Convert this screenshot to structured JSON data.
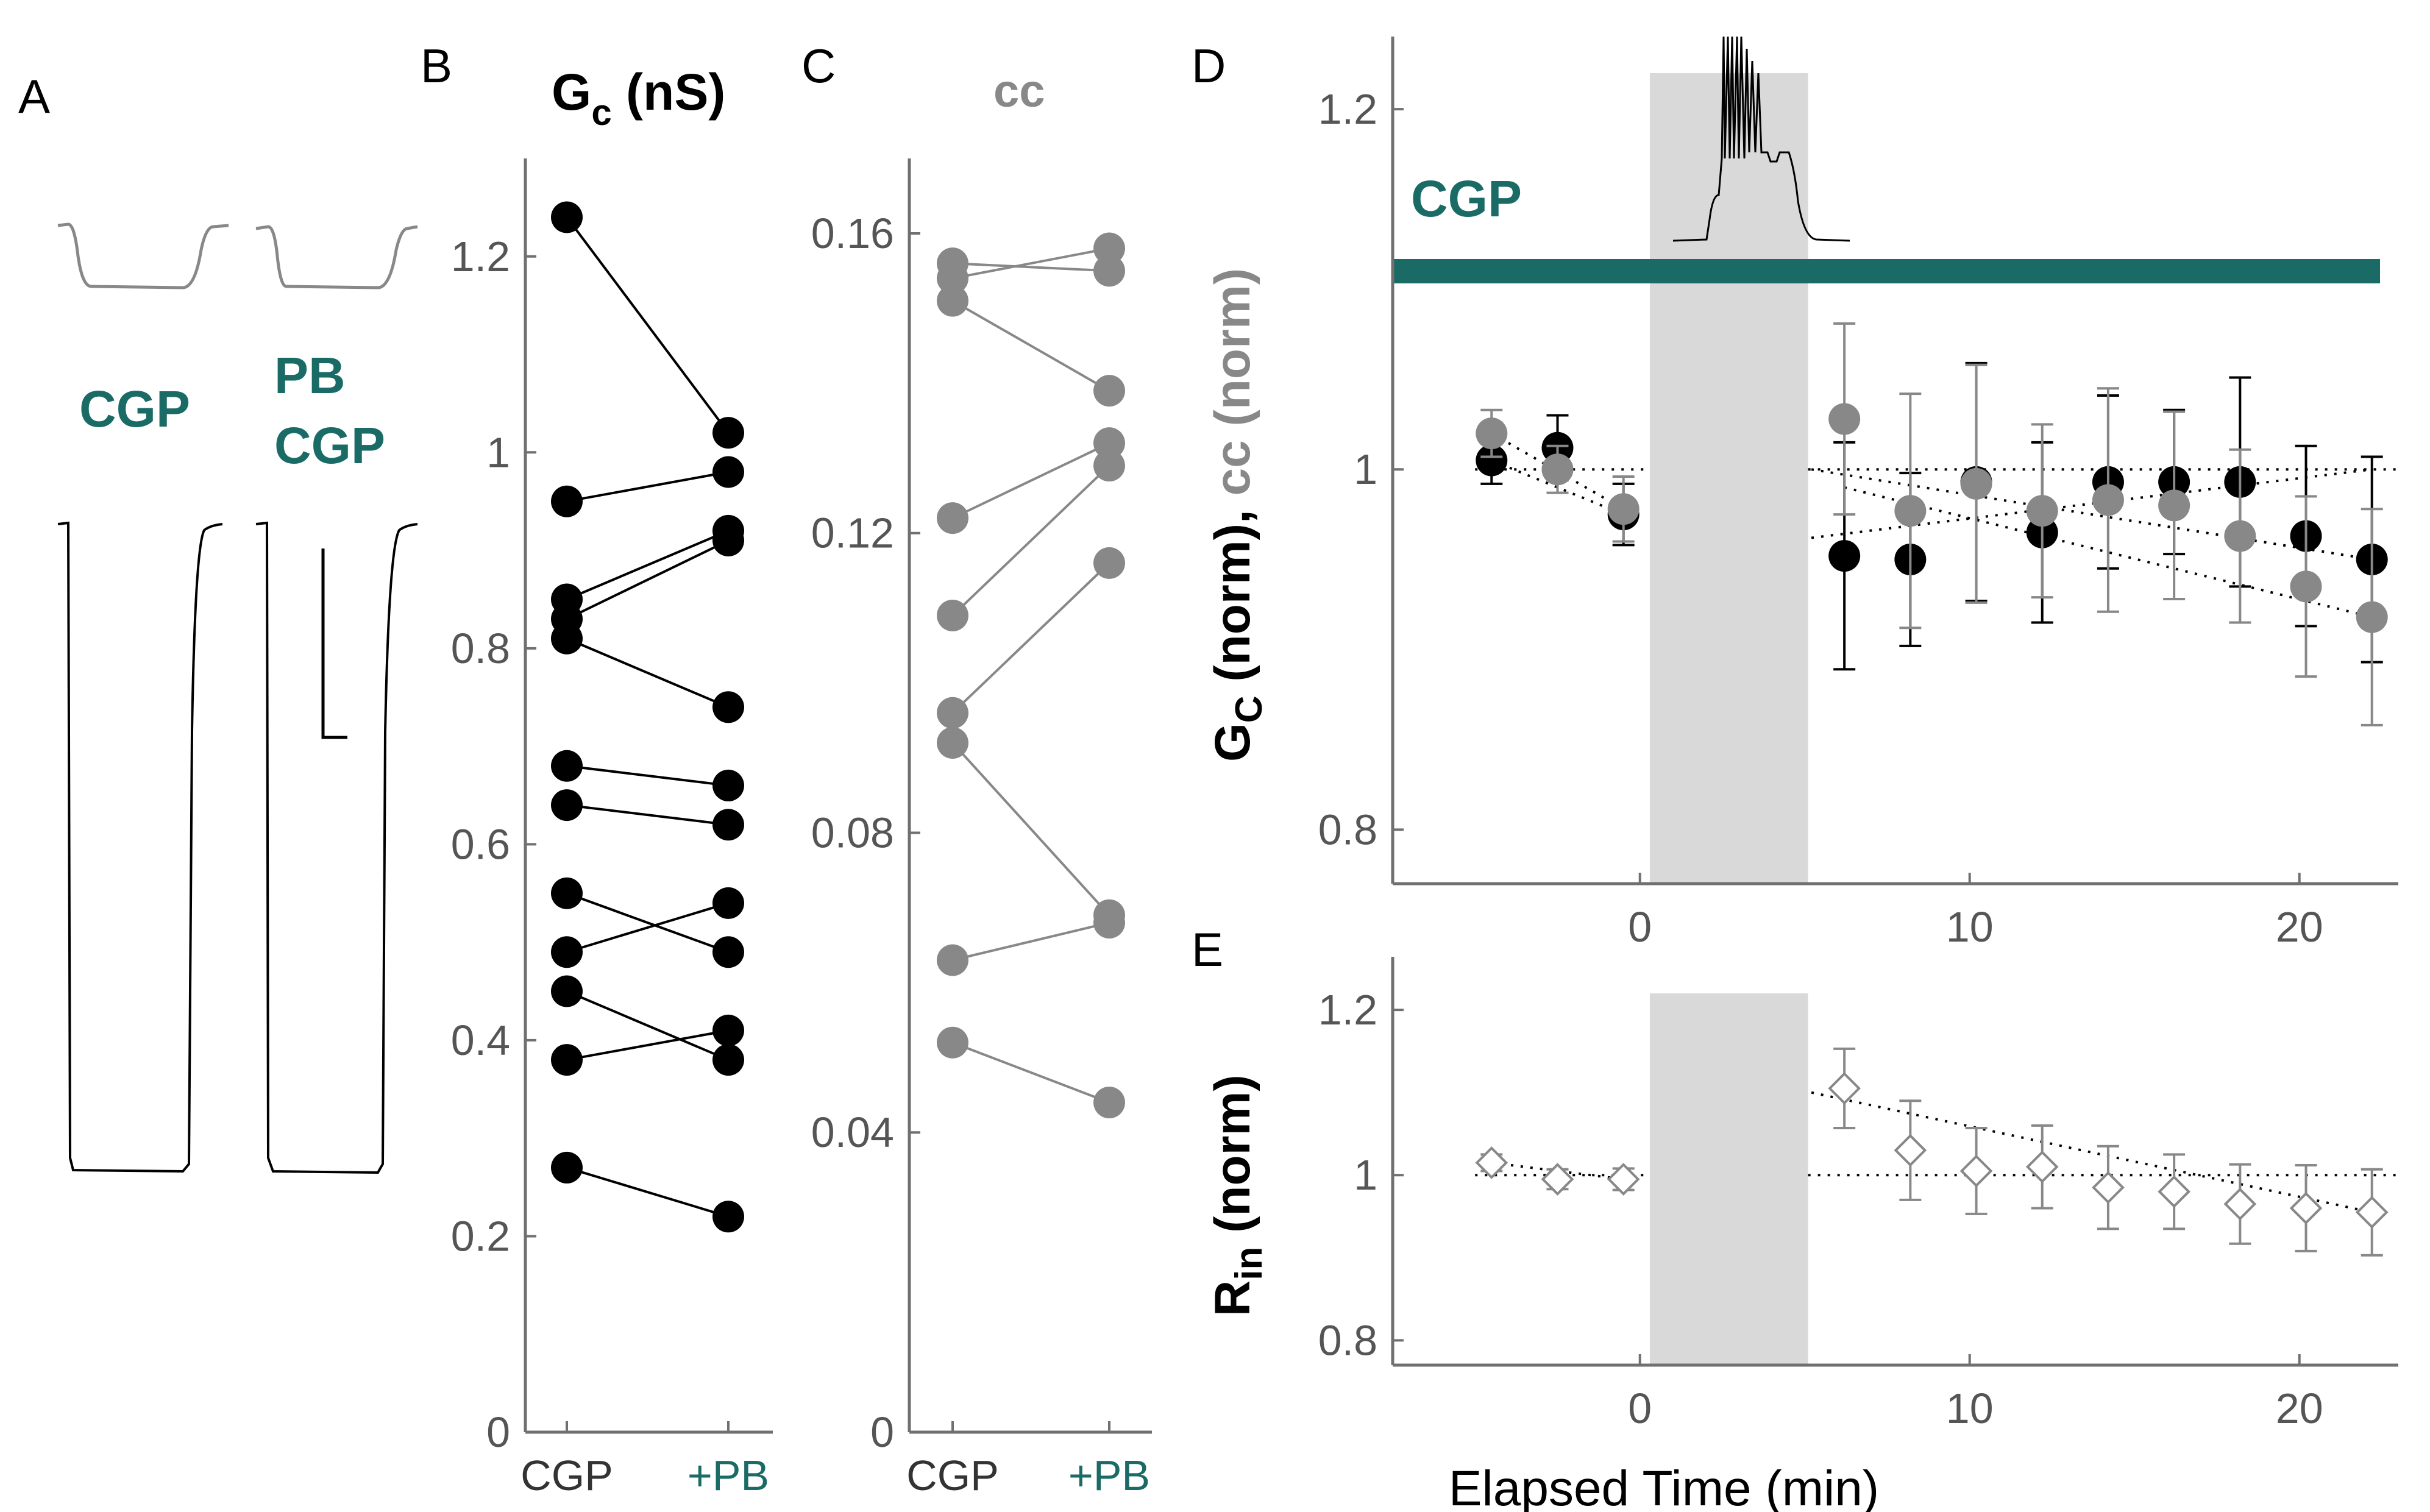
{
  "colors": {
    "black": "#000000",
    "gray": "#888888",
    "teal": "#1a6b66",
    "axis": "#707070",
    "shade": "#d9d9d9"
  },
  "panel_labels": {
    "A": "A",
    "B": "B",
    "C": "C",
    "D": "D",
    "E": "E"
  },
  "panel_A": {
    "label_cgp": "CGP",
    "label_pb": "PB",
    "label_pb_cgp": "CGP"
  },
  "chart_data": [
    {
      "panel": "B",
      "type": "scatter",
      "title": "Gc (nS)",
      "categories": [
        "CGP",
        "+PB"
      ],
      "ylim": [
        0,
        1.3
      ],
      "yticks": [
        0,
        0.2,
        0.4,
        0.6,
        0.8,
        1,
        1.2
      ],
      "yticklabels": [
        "0",
        "0.2",
        "0.4",
        "0.6",
        "0.8",
        "1",
        "1.2"
      ],
      "pairs": [
        [
          1.24,
          1.02
        ],
        [
          0.95,
          0.98
        ],
        [
          0.85,
          0.92
        ],
        [
          0.83,
          0.91
        ],
        [
          0.81,
          0.74
        ],
        [
          0.68,
          0.66
        ],
        [
          0.64,
          0.62
        ],
        [
          0.55,
          0.49
        ],
        [
          0.49,
          0.54
        ],
        [
          0.45,
          0.38
        ],
        [
          0.38,
          0.41
        ],
        [
          0.27,
          0.22
        ]
      ]
    },
    {
      "panel": "C",
      "type": "scatter",
      "title": "cc",
      "categories": [
        "CGP",
        "+PB"
      ],
      "ylim": [
        0,
        0.17
      ],
      "yticks": [
        0,
        0.04,
        0.08,
        0.12,
        0.16
      ],
      "yticklabels": [
        "0",
        "0.04",
        "0.08",
        "0.12",
        "0.16"
      ],
      "pairs": [
        [
          0.156,
          0.155
        ],
        [
          0.154,
          0.158
        ],
        [
          0.151,
          0.139
        ],
        [
          0.122,
          0.132
        ],
        [
          0.109,
          0.129
        ],
        [
          0.096,
          0.116
        ],
        [
          0.092,
          0.069
        ],
        [
          0.063,
          0.068
        ],
        [
          0.052,
          0.044
        ]
      ]
    },
    {
      "panel": "D",
      "type": "scatter",
      "ylabel": "Gc (norm), cc (norm)",
      "ylim": [
        0.77,
        1.22
      ],
      "xlim": [
        -7.5,
        23
      ],
      "yticks": [
        0.8,
        1,
        1.2
      ],
      "yticklabels": [
        "0.8",
        "1",
        "1.2"
      ],
      "xticks": [
        0,
        10,
        20
      ],
      "xticklabels": [
        "0",
        "10",
        "20"
      ],
      "drug_label": "CGP",
      "shaded_interval": [
        0.3,
        5.1
      ],
      "series": [
        {
          "color": "black",
          "x": [
            -4.5,
            -2.5,
            -0.5,
            6.2,
            8.2,
            10.2,
            12.2,
            14.2,
            16.2,
            18.2,
            20.2,
            22.2
          ],
          "y": [
            1.005,
            1.012,
            0.975,
            0.952,
            0.95,
            0.993,
            0.965,
            0.993,
            0.993,
            0.993,
            0.963,
            0.95
          ],
          "err": [
            0.013,
            0.018,
            0.017,
            0.063,
            0.048,
            0.066,
            0.05,
            0.048,
            0.04,
            0.058,
            0.05,
            0.057
          ]
        },
        {
          "color": "gray",
          "x": [
            -4.5,
            -2.5,
            -0.5,
            6.2,
            8.2,
            10.2,
            12.2,
            14.2,
            16.2,
            18.2,
            20.2,
            22.2
          ],
          "y": [
            1.02,
            1.0,
            0.978,
            1.028,
            0.977,
            0.992,
            0.977,
            0.983,
            0.98,
            0.963,
            0.935,
            0.918
          ],
          "err": [
            0.013,
            0.013,
            0.018,
            0.053,
            0.065,
            0.066,
            0.048,
            0.062,
            0.052,
            0.048,
            0.05,
            0.06
          ]
        }
      ],
      "trend_lines": [
        {
          "x": [
            -4.5,
            -0.5
          ],
          "y": [
            1.005,
            0.975
          ]
        },
        {
          "x": [
            -4.5,
            -0.5
          ],
          "y": [
            1.02,
            0.978
          ]
        },
        {
          "x": [
            5.2,
            22.2
          ],
          "y": [
            0.962,
            1.0
          ]
        },
        {
          "x": [
            5.2,
            22.2
          ],
          "y": [
            1.0,
            0.95
          ]
        },
        {
          "x": [
            6.2,
            22.2
          ],
          "y": [
            0.99,
            0.918
          ]
        }
      ],
      "baseline": 1
    },
    {
      "panel": "E",
      "type": "scatter",
      "ylabel": "Rin (norm)",
      "xlabel": "Elapsed Time (min)",
      "ylim": [
        0.77,
        1.22
      ],
      "xlim": [
        -7.5,
        23
      ],
      "yticks": [
        0.8,
        1,
        1.2
      ],
      "yticklabels": [
        "0.8",
        "1",
        "1.2"
      ],
      "xticks": [
        0,
        10,
        20
      ],
      "xticklabels": [
        "0",
        "10",
        "20"
      ],
      "shaded_interval": [
        0.3,
        5.1
      ],
      "series": [
        {
          "color": "gray",
          "marker": "diamond-open",
          "x": [
            -4.5,
            -2.5,
            -0.5,
            6.2,
            8.2,
            10.2,
            12.2,
            14.2,
            16.2,
            18.2,
            20.2,
            22.2
          ],
          "y": [
            1.015,
            0.995,
            0.995,
            1.105,
            1.03,
            1.005,
            1.01,
            0.985,
            0.98,
            0.965,
            0.96,
            0.955
          ],
          "err": [
            0.01,
            0.012,
            0.013,
            0.048,
            0.06,
            0.052,
            0.05,
            0.05,
            0.045,
            0.048,
            0.052,
            0.052
          ]
        }
      ],
      "trend_lines": [
        {
          "x": [
            -4.5,
            -0.5
          ],
          "y": [
            1.015,
            0.995
          ]
        },
        {
          "x": [
            5.2,
            22.2
          ],
          "y": [
            1.1,
            0.955
          ]
        }
      ],
      "baseline": 1
    }
  ]
}
